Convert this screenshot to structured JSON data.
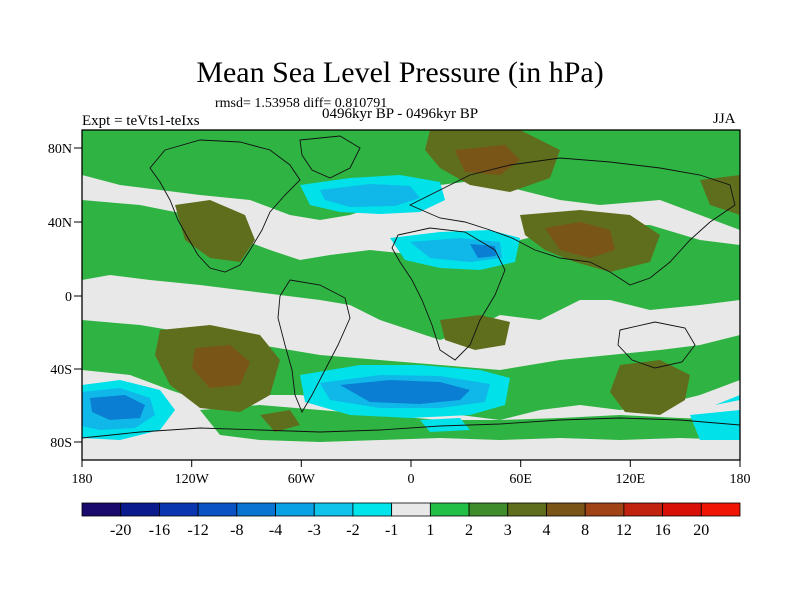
{
  "title": "Mean Sea Level Pressure (in hPa)",
  "stats": "rmsd= 1.53958  diff= 0.810791",
  "period": "0496kyr BP - 0496kyr BP",
  "experiment": "Expt = teVts1-teIxs",
  "season": "JJA",
  "lat_labels": [
    "80N",
    "40N",
    "0",
    "40S",
    "80S"
  ],
  "lon_labels": [
    "180",
    "120W",
    "60W",
    "0",
    "60E",
    "120E",
    "180"
  ],
  "colorbar": {
    "labels": [
      "-20",
      "-16",
      "-12",
      "-8",
      "-4",
      "-3",
      "-2",
      "-1",
      "1",
      "2",
      "3",
      "4",
      "8",
      "12",
      "16",
      "20"
    ],
    "colors": [
      "#1a0a6e",
      "#0b1a8c",
      "#0a36b0",
      "#0b52c4",
      "#0a74d2",
      "#0aa0e4",
      "#0fc3ea",
      "#00e5ec",
      "#e8e8e8",
      "#21bf46",
      "#3f8c2c",
      "#5f6e1d",
      "#7a5518",
      "#a04417",
      "#c1220f",
      "#d80f07",
      "#f01405"
    ]
  },
  "colors": {
    "neutral": "#e8e8e8",
    "green": "#2fb443",
    "olive": "#5f6e1d",
    "brown": "#7a5518",
    "cyan": "#00e1ea",
    "lightblue": "#0fb8e8",
    "blue": "#0a7ed2",
    "darkblue": "#0b52c4"
  }
}
